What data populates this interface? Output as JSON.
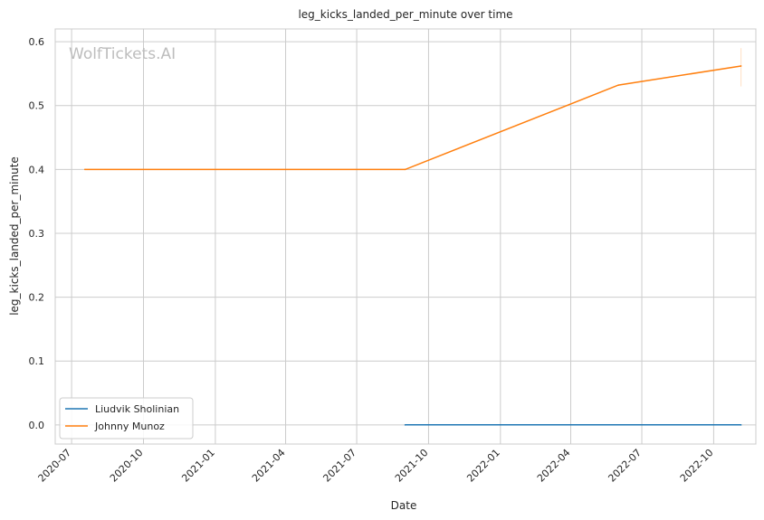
{
  "chart_data": {
    "type": "line",
    "title": "leg_kicks_landed_per_minute over time",
    "xlabel": "Date",
    "ylabel": "leg_kicks_landed_per_minute",
    "watermark": "WolfTickets.AI",
    "x_range": [
      "2020-06-10",
      "2022-11-24"
    ],
    "ylim": [
      -0.03,
      0.62
    ],
    "x_ticks": [
      "2020-07",
      "2020-10",
      "2021-01",
      "2021-04",
      "2021-07",
      "2021-10",
      "2022-01",
      "2022-04",
      "2022-07",
      "2022-10"
    ],
    "y_ticks": [
      "0.0",
      "0.1",
      "0.2",
      "0.3",
      "0.4",
      "0.5",
      "0.6"
    ],
    "grid": true,
    "legend_position": "lower-left",
    "series": [
      {
        "name": "Liudvik Sholinian",
        "color": "#1f77b4",
        "points": [
          {
            "x": "2021-09-01",
            "y": 0.0
          },
          {
            "x": "2022-11-05",
            "y": 0.0
          }
        ]
      },
      {
        "name": "Johnny Munoz",
        "color": "#ff7f0e",
        "points": [
          {
            "x": "2020-07-18",
            "y": 0.4
          },
          {
            "x": "2021-09-01",
            "y": 0.4
          },
          {
            "x": "2022-06-01",
            "y": 0.532
          },
          {
            "x": "2022-11-05",
            "y": 0.562
          }
        ],
        "error_bar": {
          "x": "2022-11-05",
          "low": 0.53,
          "high": 0.59
        }
      }
    ]
  }
}
